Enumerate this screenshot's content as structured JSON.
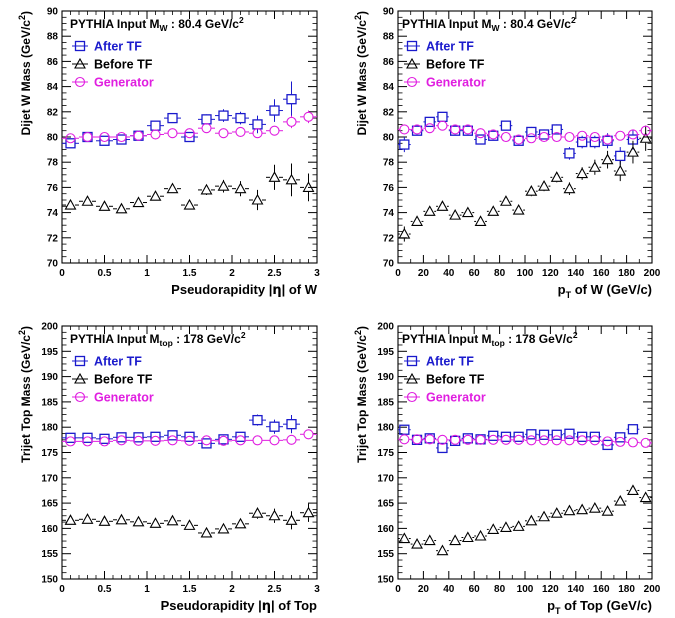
{
  "chart_data": [
    {
      "type": "scatter",
      "title_main": "PYTHIA Input M",
      "title_sub": "W",
      "title_value": " : 80.4 GeV/c",
      "title_sup": "2",
      "xlabel_parts": [
        "Pseudorapidity  |",
        "η",
        "| of W"
      ],
      "ylabel_main": "Dijet W Mass (GeV/c",
      "ylabel_sup": "2",
      "ylabel_end": ")",
      "xlim": [
        0,
        3
      ],
      "ylim": [
        70,
        90
      ],
      "xticks": [
        0,
        0.5,
        1,
        1.5,
        2,
        2.5,
        3
      ],
      "xtick_labels": [
        "0",
        "0.5",
        "1",
        "1.5",
        "2",
        "2.5",
        "3"
      ],
      "yticks": [
        70,
        72,
        74,
        76,
        78,
        80,
        82,
        84,
        86,
        88,
        90
      ],
      "ytick_labels": [
        "70",
        "72",
        "74",
        "76",
        "78",
        "80",
        "82",
        "84",
        "86",
        "88",
        "90"
      ],
      "xerr": 0.1,
      "legend": [
        "After TF",
        "Before TF",
        "Generator"
      ],
      "colors": {
        "after": "#1a1acc",
        "before": "#000000",
        "generator": "#e01ee0"
      },
      "series": [
        {
          "name": "After TF",
          "x": [
            0.1,
            0.3,
            0.5,
            0.7,
            0.9,
            1.1,
            1.3,
            1.5,
            1.7,
            1.9,
            2.1,
            2.3,
            2.5,
            2.7,
            2.9
          ],
          "y": [
            79.5,
            80.0,
            79.7,
            79.8,
            80.1,
            80.9,
            81.5,
            80.0,
            81.4,
            81.7,
            81.5,
            81.0,
            82.1,
            83.0,
            null
          ],
          "yerr": [
            0.3,
            0.2,
            0.2,
            0.2,
            0.2,
            0.3,
            0.3,
            0.3,
            0.4,
            0.5,
            0.5,
            0.7,
            0.9,
            1.4,
            0
          ]
        },
        {
          "name": "Before TF",
          "x": [
            0.1,
            0.3,
            0.5,
            0.7,
            0.9,
            1.1,
            1.3,
            1.5,
            1.7,
            1.9,
            2.1,
            2.3,
            2.5,
            2.7,
            2.9
          ],
          "y": [
            74.6,
            74.9,
            74.5,
            74.3,
            74.8,
            75.3,
            75.9,
            74.6,
            75.8,
            76.1,
            75.9,
            75.0,
            76.8,
            76.6,
            76.0
          ],
          "yerr": [
            0.3,
            0.2,
            0.2,
            0.2,
            0.2,
            0.3,
            0.3,
            0.3,
            0.4,
            0.5,
            0.6,
            0.8,
            1.0,
            1.3,
            1.1
          ]
        },
        {
          "name": "Generator",
          "x": [
            0.1,
            0.3,
            0.5,
            0.7,
            0.9,
            1.1,
            1.3,
            1.5,
            1.7,
            1.9,
            2.1,
            2.3,
            2.5,
            2.7,
            2.9
          ],
          "y": [
            79.9,
            80.0,
            80.0,
            80.0,
            80.1,
            80.2,
            80.3,
            80.3,
            80.7,
            80.3,
            80.4,
            80.3,
            80.5,
            81.2,
            81.6
          ],
          "yerr": [
            0.1,
            0.1,
            0.1,
            0.1,
            0.1,
            0.1,
            0.1,
            0.1,
            0.2,
            0.2,
            0.2,
            0.3,
            0.3,
            0.5,
            0.5
          ]
        }
      ]
    },
    {
      "type": "scatter",
      "title_main": "PYTHIA Input M",
      "title_sub": "W",
      "title_value": " : 80.4 GeV/c",
      "title_sup": "2",
      "xlabel_parts": [
        "p",
        "T",
        " of W (GeV/c)"
      ],
      "ylabel_main": "Dijet W Mass (GeV/c",
      "ylabel_sup": "2",
      "ylabel_end": ")",
      "xlim": [
        0,
        200
      ],
      "ylim": [
        70,
        90
      ],
      "xticks": [
        0,
        20,
        40,
        60,
        80,
        100,
        120,
        140,
        160,
        180,
        200
      ],
      "xtick_labels": [
        "0",
        "20",
        "40",
        "60",
        "80",
        "100",
        "120",
        "140",
        "160",
        "180",
        "200"
      ],
      "yticks": [
        70,
        72,
        74,
        76,
        78,
        80,
        82,
        84,
        86,
        88,
        90
      ],
      "ytick_labels": [
        "70",
        "72",
        "74",
        "76",
        "78",
        "80",
        "82",
        "84",
        "86",
        "88",
        "90"
      ],
      "xerr": 5,
      "legend": [
        "After TF",
        "Before TF",
        "Generator"
      ],
      "colors": {
        "after": "#1a1acc",
        "before": "#000000",
        "generator": "#e01ee0"
      },
      "series": [
        {
          "name": "After TF",
          "x": [
            5,
            15,
            25,
            35,
            45,
            55,
            65,
            75,
            85,
            95,
            105,
            115,
            125,
            135,
            145,
            155,
            165,
            175,
            185,
            195
          ],
          "y": [
            79.4,
            80.5,
            81.2,
            81.6,
            80.5,
            80.5,
            79.8,
            80.1,
            80.9,
            79.7,
            80.4,
            80.2,
            80.6,
            78.7,
            79.6,
            79.6,
            79.7,
            78.5,
            79.8,
            null
          ],
          "yerr": [
            0.6,
            0.3,
            0.3,
            0.3,
            0.3,
            0.3,
            0.3,
            0.3,
            0.3,
            0.3,
            0.4,
            0.4,
            0.4,
            0.5,
            0.5,
            0.5,
            0.6,
            0.7,
            0.8,
            0
          ]
        },
        {
          "name": "Before TF",
          "x": [
            5,
            15,
            25,
            35,
            45,
            55,
            65,
            75,
            85,
            95,
            105,
            115,
            125,
            135,
            145,
            155,
            165,
            175,
            185,
            195
          ],
          "y": [
            72.3,
            73.3,
            74.1,
            74.5,
            73.8,
            74.0,
            73.3,
            74.1,
            74.9,
            74.2,
            75.7,
            76.1,
            76.8,
            75.9,
            77.1,
            77.6,
            78.2,
            77.3,
            78.8,
            79.9
          ],
          "yerr": [
            0.6,
            0.3,
            0.3,
            0.3,
            0.3,
            0.3,
            0.3,
            0.3,
            0.3,
            0.3,
            0.4,
            0.4,
            0.4,
            0.5,
            0.5,
            0.6,
            0.7,
            0.8,
            0.9,
            1.0
          ]
        },
        {
          "name": "Generator",
          "x": [
            5,
            15,
            25,
            35,
            45,
            55,
            65,
            75,
            85,
            95,
            105,
            115,
            125,
            135,
            145,
            155,
            165,
            175,
            185,
            195
          ],
          "y": [
            80.6,
            80.6,
            80.7,
            80.9,
            80.6,
            80.6,
            80.3,
            80.2,
            80.0,
            79.8,
            79.9,
            80.0,
            80.0,
            80.0,
            80.1,
            80.0,
            79.8,
            80.1,
            80.2,
            80.5
          ],
          "yerr": [
            0.2,
            0.1,
            0.1,
            0.1,
            0.1,
            0.1,
            0.1,
            0.1,
            0.1,
            0.1,
            0.1,
            0.1,
            0.1,
            0.1,
            0.1,
            0.2,
            0.2,
            0.2,
            0.3,
            0.3
          ]
        }
      ]
    },
    {
      "type": "scatter",
      "title_main": "PYTHIA Input M",
      "title_sub": "top",
      "title_value": " : 178 GeV/c",
      "title_sup": "2",
      "xlabel_parts": [
        "Pseudorapidity  |",
        "η",
        "| of Top"
      ],
      "ylabel_main": "Trijet Top Mass (GeV/c",
      "ylabel_sup": "2",
      "ylabel_end": ")",
      "xlim": [
        0,
        3
      ],
      "ylim": [
        150,
        200
      ],
      "xticks": [
        0,
        0.5,
        1,
        1.5,
        2,
        2.5,
        3
      ],
      "xtick_labels": [
        "0",
        "0.5",
        "1",
        "1.5",
        "2",
        "2.5",
        "3"
      ],
      "yticks": [
        150,
        155,
        160,
        165,
        170,
        175,
        180,
        185,
        190,
        195,
        200
      ],
      "ytick_labels": [
        "150",
        "155",
        "160",
        "165",
        "170",
        "175",
        "180",
        "185",
        "190",
        "195",
        "200"
      ],
      "xerr": 0.1,
      "legend": [
        "After TF",
        "Before TF",
        "Generator"
      ],
      "colors": {
        "after": "#1a1acc",
        "before": "#000000",
        "generator": "#e01ee0"
      },
      "series": [
        {
          "name": "After TF",
          "x": [
            0.1,
            0.3,
            0.5,
            0.7,
            0.9,
            1.1,
            1.3,
            1.5,
            1.7,
            1.9,
            2.1,
            2.3,
            2.5,
            2.7,
            2.9
          ],
          "y": [
            177.9,
            177.9,
            177.7,
            178.0,
            178.0,
            178.1,
            178.4,
            178.1,
            176.8,
            177.6,
            178.1,
            181.4,
            180.1,
            180.6,
            null
          ],
          "yerr": [
            0.5,
            0.5,
            0.5,
            0.5,
            0.5,
            0.5,
            0.6,
            0.6,
            0.7,
            0.8,
            0.9,
            1.1,
            1.4,
            1.8,
            0
          ]
        },
        {
          "name": "Before TF",
          "x": [
            0.1,
            0.3,
            0.5,
            0.7,
            0.9,
            1.1,
            1.3,
            1.5,
            1.7,
            1.9,
            2.1,
            2.3,
            2.5,
            2.7,
            2.9
          ],
          "y": [
            161.6,
            161.8,
            161.4,
            161.7,
            161.3,
            161.0,
            161.5,
            160.6,
            159.1,
            159.9,
            160.9,
            163.0,
            162.5,
            161.6,
            163.1
          ],
          "yerr": [
            0.5,
            0.5,
            0.5,
            0.5,
            0.5,
            0.5,
            0.6,
            0.6,
            0.7,
            0.8,
            0.9,
            1.1,
            1.4,
            1.8,
            1.8
          ]
        },
        {
          "name": "Generator",
          "x": [
            0.1,
            0.3,
            0.5,
            0.7,
            0.9,
            1.1,
            1.3,
            1.5,
            1.7,
            1.9,
            2.1,
            2.3,
            2.5,
            2.7,
            2.9
          ],
          "y": [
            177.2,
            177.2,
            177.2,
            177.4,
            177.3,
            177.3,
            177.4,
            177.3,
            177.4,
            177.3,
            177.4,
            177.4,
            177.4,
            177.5,
            178.6
          ],
          "yerr": [
            0.3,
            0.3,
            0.3,
            0.3,
            0.3,
            0.3,
            0.3,
            0.3,
            0.3,
            0.4,
            0.4,
            0.4,
            0.5,
            0.5,
            0.6
          ]
        }
      ]
    },
    {
      "type": "scatter",
      "title_main": "PYTHIA Input M",
      "title_sub": "top",
      "title_value": " : 178 GeV/c",
      "title_sup": "2",
      "xlabel_parts": [
        "p",
        "T",
        " of Top (GeV/c)"
      ],
      "ylabel_main": "Trijet Top Mass (GeV/c",
      "ylabel_sup": "2",
      "ylabel_end": ")",
      "xlim": [
        0,
        200
      ],
      "ylim": [
        150,
        200
      ],
      "xticks": [
        0,
        20,
        40,
        60,
        80,
        100,
        120,
        140,
        160,
        180,
        200
      ],
      "xtick_labels": [
        "0",
        "20",
        "40",
        "60",
        "80",
        "100",
        "120",
        "140",
        "160",
        "180",
        "200"
      ],
      "yticks": [
        150,
        155,
        160,
        165,
        170,
        175,
        180,
        185,
        190,
        195,
        200
      ],
      "ytick_labels": [
        "150",
        "155",
        "160",
        "165",
        "170",
        "175",
        "180",
        "185",
        "190",
        "195",
        "200"
      ],
      "xerr": 5,
      "legend": [
        "After TF",
        "Before TF",
        "Generator"
      ],
      "colors": {
        "after": "#1a1acc",
        "before": "#000000",
        "generator": "#e01ee0"
      },
      "series": [
        {
          "name": "After TF",
          "x": [
            5,
            15,
            25,
            35,
            45,
            55,
            65,
            75,
            85,
            95,
            105,
            115,
            125,
            135,
            145,
            155,
            165,
            175,
            185,
            195
          ],
          "y": [
            179.5,
            177.5,
            177.8,
            175.9,
            177.3,
            177.8,
            177.6,
            178.3,
            178.1,
            178.1,
            178.6,
            178.5,
            178.5,
            178.7,
            178.1,
            178.1,
            176.5,
            178.0,
            179.6,
            null
          ],
          "yerr": [
            0.8,
            0.5,
            0.5,
            0.5,
            0.5,
            0.5,
            0.5,
            0.5,
            0.5,
            0.5,
            0.5,
            0.5,
            0.5,
            0.6,
            0.6,
            0.6,
            0.7,
            0.7,
            0.8,
            0
          ]
        },
        {
          "name": "Before TF",
          "x": [
            5,
            15,
            25,
            35,
            45,
            55,
            65,
            75,
            85,
            95,
            105,
            115,
            125,
            135,
            145,
            155,
            165,
            175,
            185,
            195
          ],
          "y": [
            158.0,
            156.9,
            157.6,
            155.6,
            157.6,
            158.2,
            158.5,
            159.8,
            160.2,
            160.4,
            161.5,
            162.3,
            163.0,
            163.5,
            163.7,
            164.0,
            163.4,
            165.4,
            167.5,
            166.1
          ],
          "yerr": [
            0.8,
            0.5,
            0.5,
            0.5,
            0.5,
            0.5,
            0.5,
            0.5,
            0.5,
            0.5,
            0.5,
            0.5,
            0.5,
            0.6,
            0.6,
            0.6,
            0.7,
            0.7,
            0.8,
            0.9
          ]
        },
        {
          "name": "Generator",
          "x": [
            5,
            15,
            25,
            35,
            45,
            55,
            65,
            75,
            85,
            95,
            105,
            115,
            125,
            135,
            145,
            155,
            165,
            175,
            185,
            195
          ],
          "y": [
            177.6,
            177.6,
            177.6,
            177.5,
            177.5,
            177.5,
            177.5,
            177.5,
            177.5,
            177.5,
            177.4,
            177.4,
            177.4,
            177.4,
            177.4,
            177.4,
            177.2,
            177.1,
            177.0,
            176.9
          ],
          "yerr": [
            0.3,
            0.3,
            0.3,
            0.3,
            0.3,
            0.3,
            0.3,
            0.3,
            0.3,
            0.3,
            0.3,
            0.3,
            0.3,
            0.3,
            0.3,
            0.3,
            0.3,
            0.3,
            0.4,
            0.4
          ]
        }
      ]
    }
  ]
}
